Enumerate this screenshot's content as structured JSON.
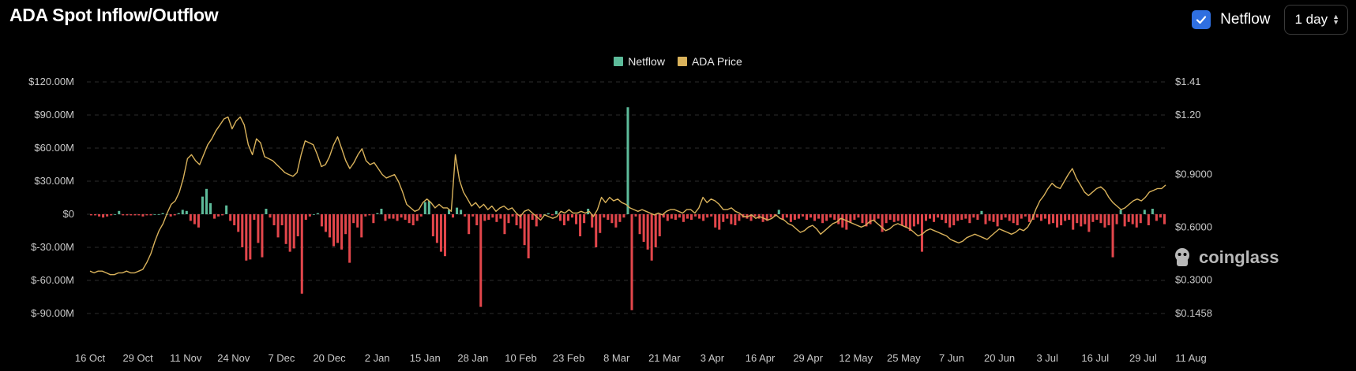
{
  "header": {
    "title": "ADA Spot Inflow/Outflow"
  },
  "controls": {
    "checkbox_label": "Netflow",
    "checked": true,
    "select_value": "1 day"
  },
  "watermark": {
    "text": "coinglass"
  },
  "colors": {
    "inflow": "#5dbb9a",
    "outflow": "#e2464b",
    "price": "#d9b25b",
    "grid": "#2d2d2d"
  },
  "chart_data": {
    "type": "bar",
    "x_labels": [
      "16 Oct",
      "29 Oct",
      "11 Nov",
      "24 Nov",
      "7 Dec",
      "20 Dec",
      "2 Jan",
      "15 Jan",
      "28 Jan",
      "10 Feb",
      "23 Feb",
      "8 Mar",
      "21 Mar",
      "3 Apr",
      "16 Apr",
      "29 Apr",
      "12 May",
      "25 May",
      "7 Jun",
      "20 Jun",
      "3 Jul",
      "16 Jul",
      "29 Jul",
      "11 Aug"
    ],
    "y_left": {
      "ticks": [
        "$120.00M",
        "$90.00M",
        "$60.00M",
        "$30.00M",
        "$0",
        "$-30.00M",
        "$-60.00M",
        "$-90.00M"
      ],
      "min": -90,
      "max": 120,
      "unit": "M USD"
    },
    "y_right": {
      "ticks": [
        "$1.41",
        "$1.20",
        "$0.9000",
        "$0.6000",
        "$0.3000",
        "$0.1458"
      ],
      "values": [
        1.41,
        1.2,
        0.9,
        0.6,
        0.3,
        0.1458
      ]
    },
    "grid": true,
    "legend_position": "top-center",
    "series": [
      {
        "name": "Netflow",
        "type": "bar",
        "unit": "M USD",
        "values": [
          -1,
          -1,
          -2,
          -3,
          -2,
          -1,
          0,
          3,
          -1,
          -1,
          -1,
          -1,
          -1,
          -2,
          -1,
          -1,
          0,
          0,
          1,
          0,
          -2,
          -1,
          1,
          4,
          3,
          -6,
          -9,
          -12,
          16,
          23,
          10,
          -4,
          -2,
          -1,
          8,
          -6,
          -10,
          -16,
          -30,
          -42,
          -41,
          -5,
          -26,
          -39,
          5,
          -3,
          -10,
          -21,
          -10,
          -27,
          -34,
          -31,
          -20,
          -72,
          -5,
          -2,
          0,
          1,
          -11,
          -16,
          -21,
          -29,
          -26,
          -32,
          -18,
          -44,
          -8,
          -12,
          -21,
          -2,
          -1,
          -8,
          1,
          5,
          -6,
          -4,
          -4,
          -6,
          -3,
          -5,
          -8,
          -10,
          -6,
          -2,
          11,
          12,
          -20,
          -26,
          -34,
          -38,
          4,
          -3,
          6,
          4,
          -2,
          -18,
          -2,
          -10,
          -84,
          -6,
          -5,
          -3,
          -7,
          -4,
          -18,
          -8,
          -2,
          -10,
          -13,
          -28,
          -40,
          -5,
          -11,
          -3,
          0,
          1,
          -1,
          3,
          -6,
          -10,
          -6,
          -3,
          -9,
          -20,
          -8,
          5,
          -12,
          -30,
          -17,
          -3,
          -5,
          -8,
          -12,
          -7,
          -3,
          97,
          -87,
          -2,
          -18,
          -25,
          -32,
          -42,
          -30,
          -20,
          -3,
          -6,
          -4,
          -5,
          -3,
          -7,
          -4,
          -5,
          -2,
          -4,
          -6,
          -3,
          -2,
          -12,
          -14,
          -7,
          -4,
          -9,
          -10,
          -6,
          -3,
          -4,
          -6,
          -2,
          -4,
          -7,
          -6,
          -3,
          -2,
          4,
          -5,
          -3,
          -7,
          -5,
          -4,
          -2,
          -5,
          -3,
          -6,
          -4,
          -8,
          -6,
          -3,
          -5,
          -9,
          -12,
          -14,
          -7,
          -5,
          -3,
          -8,
          -11,
          -9,
          -6,
          -4,
          -16,
          -8,
          -5,
          -7,
          -6,
          -10,
          -12,
          -15,
          -11,
          -9,
          -34,
          -6,
          -4,
          -7,
          -3,
          -5,
          -8,
          -12,
          -10,
          -6,
          -5,
          -4,
          -8,
          -3,
          -5,
          3,
          -9,
          -6,
          -7,
          -11,
          -5,
          -3,
          -6,
          -8,
          -10,
          -4,
          -2,
          -7,
          -5,
          -3,
          -6,
          -4,
          -9,
          -8,
          -12,
          -10,
          -6,
          -5,
          -14,
          -8,
          -11,
          -9,
          -16,
          -7,
          -5,
          -8,
          -12,
          -10,
          -39,
          -9,
          4,
          -11,
          -7,
          -9,
          -12,
          -8,
          4,
          -10,
          5,
          -6,
          -3,
          -9
        ]
      },
      {
        "name": "ADA Price",
        "type": "line",
        "unit": "USD",
        "values": [
          0.35,
          0.34,
          0.35,
          0.35,
          0.34,
          0.33,
          0.33,
          0.34,
          0.34,
          0.35,
          0.34,
          0.34,
          0.35,
          0.36,
          0.4,
          0.45,
          0.52,
          0.58,
          0.62,
          0.68,
          0.73,
          0.75,
          0.8,
          0.88,
          0.98,
          1.0,
          0.97,
          0.95,
          1.0,
          1.05,
          1.08,
          1.12,
          1.15,
          1.18,
          1.19,
          1.13,
          1.17,
          1.19,
          1.15,
          1.05,
          1.0,
          1.08,
          1.06,
          0.99,
          0.98,
          0.97,
          0.95,
          0.93,
          0.91,
          0.9,
          0.89,
          0.91,
          1.0,
          1.07,
          1.06,
          1.05,
          1.0,
          0.94,
          0.95,
          0.99,
          1.05,
          1.09,
          1.03,
          0.97,
          0.93,
          0.96,
          1.0,
          1.03,
          0.97,
          0.95,
          0.96,
          0.93,
          0.9,
          0.88,
          0.89,
          0.9,
          0.86,
          0.8,
          0.73,
          0.71,
          0.69,
          0.7,
          0.74,
          0.76,
          0.74,
          0.71,
          0.73,
          0.71,
          0.71,
          0.69,
          1.0,
          0.87,
          0.8,
          0.76,
          0.72,
          0.74,
          0.71,
          0.73,
          0.7,
          0.72,
          0.69,
          0.71,
          0.72,
          0.7,
          0.71,
          0.68,
          0.66,
          0.69,
          0.7,
          0.68,
          0.66,
          0.64,
          0.67,
          0.66,
          0.65,
          0.66,
          0.69,
          0.68,
          0.7,
          0.68,
          0.68,
          0.69,
          0.68,
          0.69,
          0.66,
          0.7,
          0.77,
          0.74,
          0.77,
          0.75,
          0.76,
          0.74,
          0.73,
          0.71,
          0.7,
          0.69,
          0.7,
          0.69,
          0.68,
          0.67,
          0.68,
          0.67,
          0.69,
          0.7,
          0.7,
          0.69,
          0.68,
          0.7,
          0.7,
          0.68,
          0.71,
          0.77,
          0.74,
          0.76,
          0.75,
          0.73,
          0.7,
          0.7,
          0.71,
          0.69,
          0.68,
          0.66,
          0.66,
          0.67,
          0.65,
          0.66,
          0.65,
          0.64,
          0.65,
          0.67,
          0.65,
          0.64,
          0.62,
          0.61,
          0.59,
          0.57,
          0.58,
          0.6,
          0.61,
          0.59,
          0.56,
          0.58,
          0.6,
          0.62,
          0.63,
          0.65,
          0.64,
          0.63,
          0.62,
          0.61,
          0.6,
          0.61,
          0.63,
          0.64,
          0.62,
          0.6,
          0.58,
          0.59,
          0.61,
          0.62,
          0.61,
          0.6,
          0.59,
          0.57,
          0.55,
          0.56,
          0.58,
          0.59,
          0.58,
          0.57,
          0.56,
          0.55,
          0.53,
          0.52,
          0.51,
          0.52,
          0.54,
          0.55,
          0.56,
          0.55,
          0.54,
          0.53,
          0.55,
          0.57,
          0.59,
          0.58,
          0.57,
          0.56,
          0.57,
          0.59,
          0.58,
          0.6,
          0.64,
          0.7,
          0.75,
          0.78,
          0.82,
          0.85,
          0.83,
          0.82,
          0.86,
          0.9,
          0.93,
          0.88,
          0.84,
          0.8,
          0.78,
          0.8,
          0.82,
          0.83,
          0.81,
          0.77,
          0.74,
          0.72,
          0.7,
          0.71,
          0.73,
          0.75,
          0.76,
          0.75,
          0.77,
          0.8,
          0.81,
          0.82,
          0.82,
          0.84
        ]
      }
    ]
  }
}
